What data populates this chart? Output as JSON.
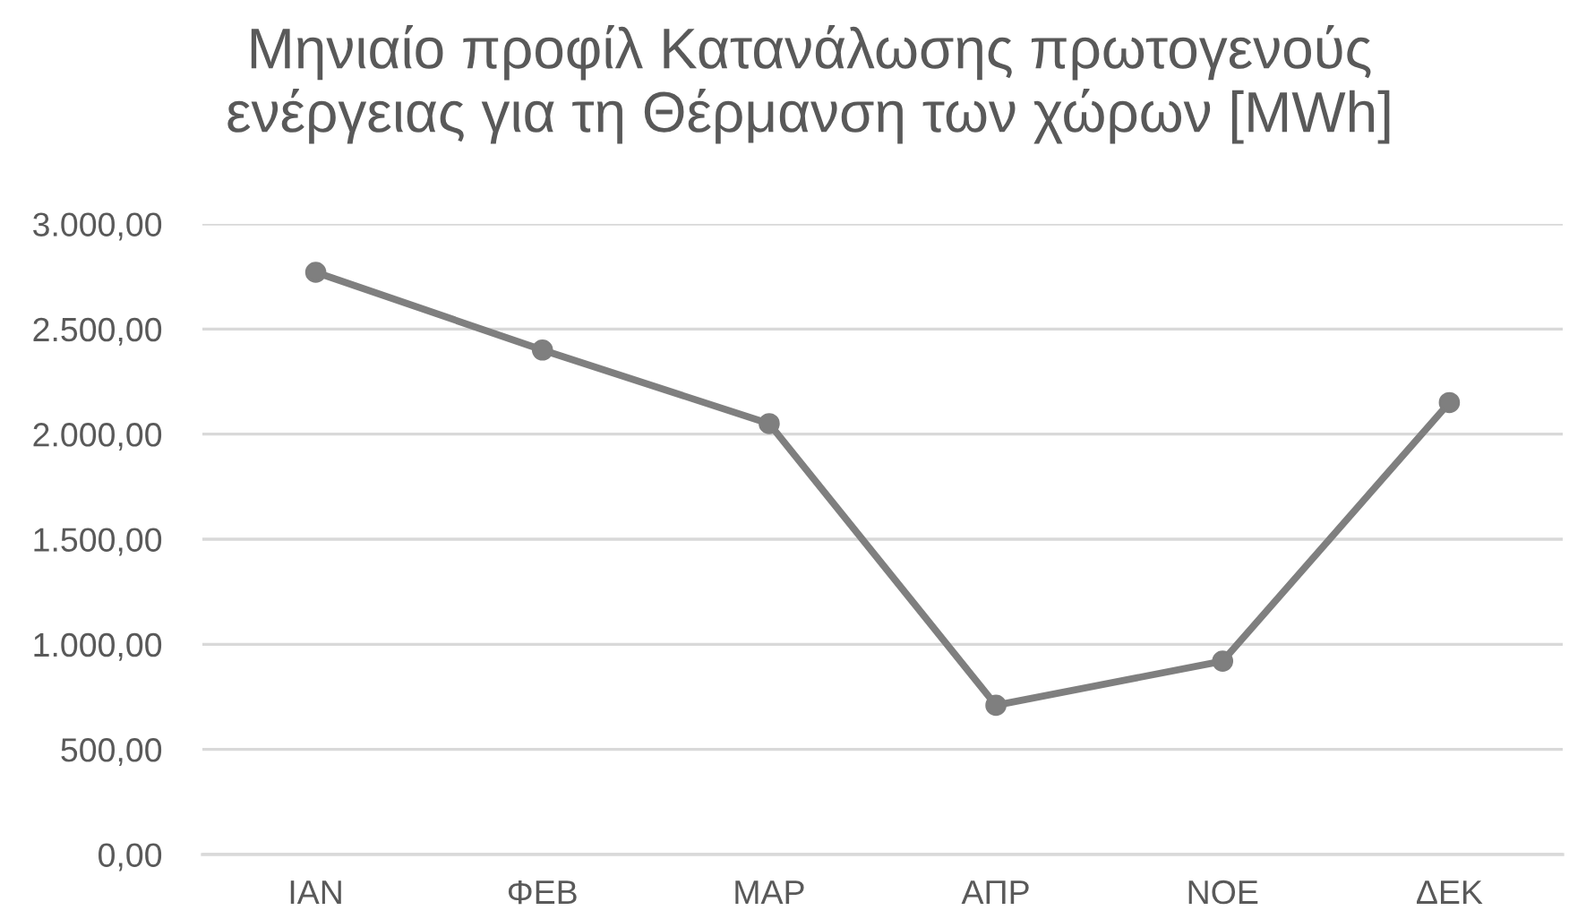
{
  "chart_data": {
    "type": "line",
    "title": "Μηνιαίο προφίλ Κατανάλωσης πρωτογενούς\nενέργειας για τη Θέρμανση των χώρων [MWh]",
    "categories": [
      "ΙΑΝ",
      "ΦΕΒ",
      "ΜΑΡ",
      "ΑΠΡ",
      "ΝΟΕ",
      "ΔΕΚ"
    ],
    "series": [
      {
        "color": "#7f7f7f",
        "values": [
          2770,
          2400,
          2050,
          710,
          920,
          2150
        ]
      }
    ],
    "ylim": [
      0,
      3000
    ],
    "yticks": [
      {
        "value": 0,
        "label": "0,00"
      },
      {
        "value": 500,
        "label": "500,00"
      },
      {
        "value": 1000,
        "label": "1.000,00"
      },
      {
        "value": 1500,
        "label": "1.500,00"
      },
      {
        "value": 2000,
        "label": "2.000,00"
      },
      {
        "value": 2500,
        "label": "2.500,00"
      },
      {
        "value": 3000,
        "label": "3.000,00"
      }
    ],
    "grid": "y",
    "marker": "circle",
    "line_style": "solid"
  }
}
